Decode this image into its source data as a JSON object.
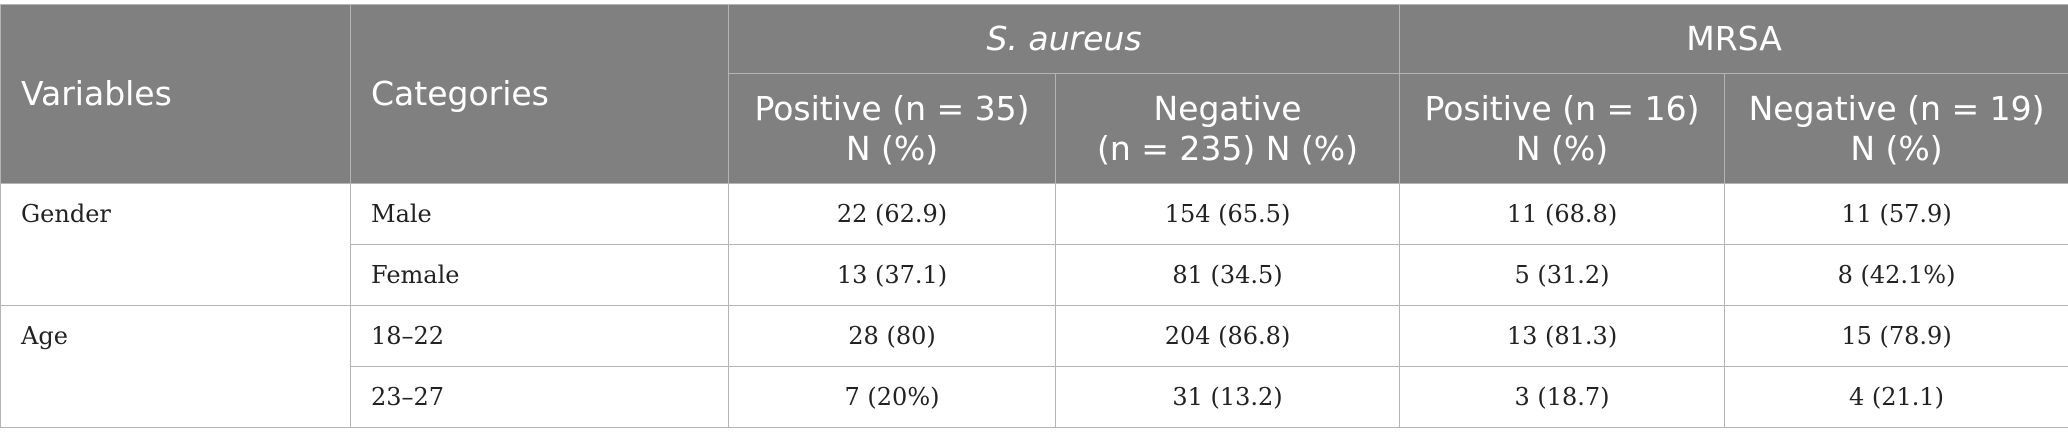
{
  "header": {
    "variables": "Variables",
    "categories": "Categories",
    "group_saureus": "S. aureus",
    "group_mrsa": "MRSA",
    "sa_pos_line1": "Positive (n = 35)",
    "sa_pos_line2": "N (%)",
    "sa_neg_line1": "Negative",
    "sa_neg_line2": "(n = 235) N (%)",
    "mrsa_pos_line1": "Positive (n = 16)",
    "mrsa_pos_line2": "N (%)",
    "mrsa_neg_line1": "Negative (n = 19)",
    "mrsa_neg_line2": "N (%)"
  },
  "rows": [
    {
      "variable": "Gender",
      "category": "Male",
      "sa_pos": "22 (62.9)",
      "sa_neg": "154 (65.5)",
      "mrsa_pos": "11 (68.8)",
      "mrsa_neg": "11 (57.9)"
    },
    {
      "variable": "",
      "category": "Female",
      "sa_pos": "13 (37.1)",
      "sa_neg": "81 (34.5)",
      "mrsa_pos": "5 (31.2)",
      "mrsa_neg": "8 (42.1%)"
    },
    {
      "variable": "Age",
      "category": "18–22",
      "sa_pos": "28 (80)",
      "sa_neg": "204 (86.8)",
      "mrsa_pos": "13 (81.3)",
      "mrsa_neg": "15 (78.9)"
    },
    {
      "variable": "",
      "category": "23–27",
      "sa_pos": "7 (20%)",
      "sa_neg": "31 (13.2)",
      "mrsa_pos": "3 (18.7)",
      "mrsa_neg": "4 (21.1)"
    }
  ]
}
